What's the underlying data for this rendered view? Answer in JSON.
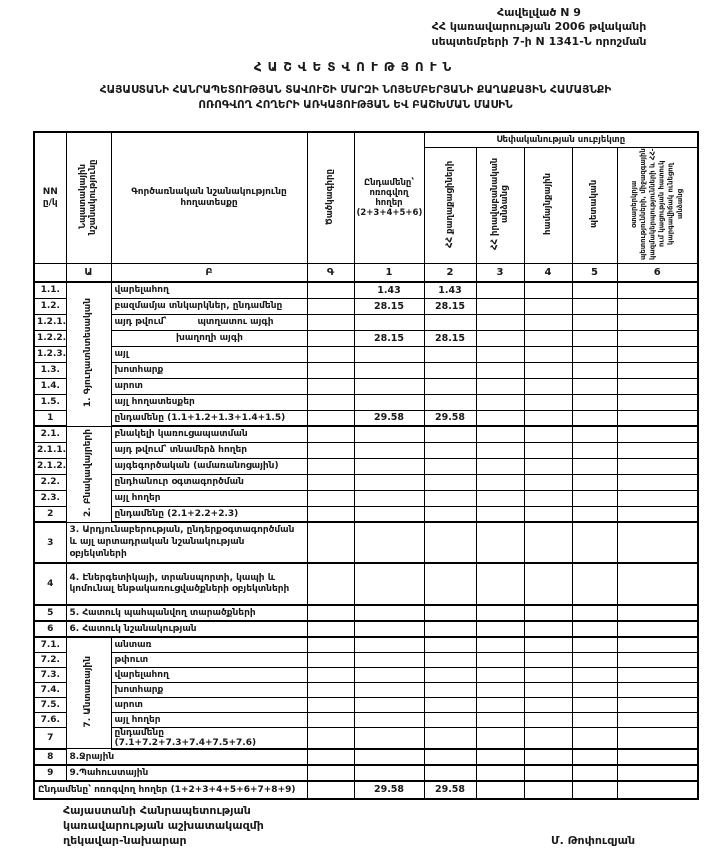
{
  "annex": {
    "line1": "Հավելված N 9",
    "line2": "ՀՀ կառավարության 2006 թվականի",
    "line3": "սեպտեմբերի 7-ի  N 1341-Ն որոշման"
  },
  "title": {
    "line1": "ՀԱՇՎԵՏՎՈՒԹՅՈՒՆ",
    "line2": "ՀԱՅԱՍՏԱՆԻ ՀԱՆՐԱՊԵՏՈՒԹՅԱՆ ՏԱՎՈՒՇԻ ՄԱՐԶԻ ՆՈՅԵՄԲԵՐՅԱՆԻ ՔԱՂԱՔԱՅԻՆ ՀԱՄԱՅՆՔԻ",
    "line3": "ՈՌՈԳՎՈՂ ՀՈՂԵՐԻ ԱՌԿԱՅՈՒԹՅԱՆ ԵՎ ԲԱՇԽՄԱՆ ՄԱՍԻՆ"
  },
  "table": {
    "ownership_header": "Սեփականության սուբյեկտը",
    "col_headers": {
      "nn": "NN ը/կ",
      "purpose": "Նպատակային նշանակությունը",
      "functional": "Գործառնական նշանակությունը հողատեսքը",
      "code": "Ծածկագիրը",
      "total": "Ընդամենը՝ ոռոգվող հողեր (2+3+4+5+6)",
      "citizens": "ՀՀ քաղաքացիների",
      "legal": "ՀՀ իրավաբանական անձանց",
      "community": "համայնքային",
      "state": "պետական",
      "foreign": "օտարերկրյա պետությունների, միջազգային կազմակերպությունների և ՀՀ-ում կացության հատուկ կարգավիճակ ունեցող անձանց"
    },
    "letter_row": [
      "",
      "Ա",
      "Բ",
      "Գ",
      "1",
      "2",
      "3",
      "4",
      "5",
      "6"
    ],
    "rows": [
      {
        "c": [
          {
            "t": "1.1."
          },
          {
            "t": "1. Գյուղատնտեսական",
            "rs": 9,
            "cls": "vgroup"
          },
          {
            "t": "վարելահող",
            "cls": "desc"
          },
          {},
          {
            "t": "1.43",
            "cls": "num"
          },
          {
            "t": "1.43",
            "cls": "num"
          },
          {},
          {},
          {},
          {}
        ]
      },
      {
        "c": [
          {
            "t": "1.2."
          },
          {
            "t": "բազմամյա տնկարկներ, ընդամենը",
            "cls": "desc"
          },
          {},
          {
            "t": "28.15",
            "cls": "num"
          },
          {
            "t": "28.15",
            "cls": "num"
          },
          {},
          {},
          {},
          {}
        ]
      },
      {
        "c": [
          {
            "t": "1.2.1."
          },
          {
            "t": "այդ թվում՝",
            "t2": "պտղատու այգի",
            "cls": "desc"
          },
          {},
          {},
          {},
          {},
          {},
          {},
          {}
        ]
      },
      {
        "c": [
          {
            "t": "1.2.2."
          },
          {
            "t": "խաղողի այգի",
            "cls": "desc desc-c"
          },
          {},
          {
            "t": "28.15",
            "cls": "num"
          },
          {
            "t": "28.15",
            "cls": "num"
          },
          {},
          {},
          {},
          {}
        ]
      },
      {
        "c": [
          {
            "t": "1.2.3."
          },
          {
            "t": "այլ",
            "cls": "desc"
          },
          {},
          {},
          {},
          {},
          {},
          {},
          {}
        ]
      },
      {
        "c": [
          {
            "t": "1.3."
          },
          {
            "t": "խոտհարք",
            "cls": "desc"
          },
          {},
          {},
          {},
          {},
          {},
          {},
          {}
        ]
      },
      {
        "c": [
          {
            "t": "1.4."
          },
          {
            "t": "արոտ",
            "cls": "desc"
          },
          {},
          {},
          {},
          {},
          {},
          {},
          {}
        ]
      },
      {
        "c": [
          {
            "t": "1.5."
          },
          {
            "t": "այլ հողատեսքեր",
            "cls": "desc"
          },
          {},
          {},
          {},
          {},
          {},
          {},
          {}
        ]
      },
      {
        "hb": true,
        "c": [
          {
            "t": "1"
          },
          {
            "t": "ընդամենը (1.1+1.2+1.3+1.4+1.5)",
            "cls": "desc"
          },
          {},
          {
            "t": "29.58",
            "cls": "num"
          },
          {
            "t": "29.58",
            "cls": "num"
          },
          {},
          {},
          {},
          {}
        ]
      },
      {
        "c": [
          {
            "t": "2.1."
          },
          {
            "t": "2. Բնակավայրերի",
            "rs": 6,
            "cls": "vgroup"
          },
          {
            "t": "բնակելի կառուցապատման",
            "cls": "desc"
          },
          {},
          {},
          {},
          {},
          {},
          {},
          {}
        ]
      },
      {
        "c": [
          {
            "t": "2.1.1."
          },
          {
            "t": "այդ թվում՝ տնամերձ հողեր",
            "cls": "desc"
          },
          {},
          {},
          {},
          {},
          {},
          {},
          {}
        ]
      },
      {
        "c": [
          {
            "t": "2.1.2."
          },
          {
            "t": "այգեգործական (ամառանոցային)",
            "cls": "desc"
          },
          {},
          {},
          {},
          {},
          {},
          {},
          {}
        ]
      },
      {
        "c": [
          {
            "t": "2.2."
          },
          {
            "t": "ընդհանուր օգտագործման",
            "cls": "desc"
          },
          {},
          {},
          {},
          {},
          {},
          {},
          {}
        ]
      },
      {
        "c": [
          {
            "t": "2.3."
          },
          {
            "t": "այլ հողեր",
            "cls": "desc"
          },
          {},
          {},
          {},
          {},
          {},
          {},
          {}
        ]
      },
      {
        "hb": true,
        "c": [
          {
            "t": "2"
          },
          {
            "t": "ընդամենը (2.1+2.2+2.3)",
            "cls": "desc"
          },
          {},
          {},
          {},
          {},
          {},
          {},
          {}
        ]
      },
      {
        "h": 36,
        "hb": true,
        "c": [
          {
            "t": "3"
          },
          {
            "t": "3. Արդյունաբերության, ընդերքօգտագործման և այլ արտադրական նշանակության օբյեկտների",
            "cs": 2,
            "cls": "desc wrap"
          },
          {},
          {},
          {},
          {},
          {},
          {},
          {}
        ]
      },
      {
        "h": 42,
        "hb": true,
        "c": [
          {
            "t": "4"
          },
          {
            "t": "4. Էներգետիկայի, տրանսպորտի, կապի և կոմունալ ենթակառուցվածքների օբյեկտների",
            "cs": 2,
            "cls": "desc wrap"
          },
          {},
          {},
          {},
          {},
          {},
          {},
          {}
        ]
      },
      {
        "hb": true,
        "c": [
          {
            "t": "5"
          },
          {
            "t": "5. Հատուկ պահպանվող տարածքների",
            "cs": 2,
            "cls": "desc"
          },
          {},
          {},
          {},
          {},
          {},
          {},
          {}
        ]
      },
      {
        "hb": true,
        "c": [
          {
            "t": "6"
          },
          {
            "t": "6. Հատուկ նշանակության",
            "cs": 2,
            "cls": "desc"
          },
          {},
          {},
          {},
          {},
          {},
          {},
          {}
        ]
      },
      {
        "h": 15,
        "c": [
          {
            "t": "7.1."
          },
          {
            "t": "7. Անտառային",
            "rs": 7,
            "cls": "vgroup"
          },
          {
            "t": "անտառ",
            "cls": "desc"
          },
          {},
          {},
          {},
          {},
          {},
          {},
          {}
        ]
      },
      {
        "h": 15,
        "c": [
          {
            "t": "7.2."
          },
          {
            "t": "թփուտ",
            "cls": "desc"
          },
          {},
          {},
          {},
          {},
          {},
          {},
          {}
        ]
      },
      {
        "h": 15,
        "c": [
          {
            "t": "7.3."
          },
          {
            "t": "վարելահող",
            "cls": "desc"
          },
          {},
          {},
          {},
          {},
          {},
          {},
          {}
        ]
      },
      {
        "h": 15,
        "c": [
          {
            "t": "7.4."
          },
          {
            "t": "խոտհարք",
            "cls": "desc"
          },
          {},
          {},
          {},
          {},
          {},
          {},
          {}
        ]
      },
      {
        "h": 15,
        "c": [
          {
            "t": "7.5."
          },
          {
            "t": "արոտ",
            "cls": "desc"
          },
          {},
          {},
          {},
          {},
          {},
          {},
          {}
        ]
      },
      {
        "h": 15,
        "c": [
          {
            "t": "7.6."
          },
          {
            "t": "այլ հողեր",
            "cls": "desc"
          },
          {},
          {},
          {},
          {},
          {},
          {},
          {}
        ]
      },
      {
        "h": 15,
        "hb": true,
        "c": [
          {
            "t": "7"
          },
          {
            "t": "ընդամենը (7.1+7.2+7.3+7.4+7.5+7.6)",
            "cls": "desc"
          },
          {},
          {},
          {},
          {},
          {},
          {},
          {}
        ]
      },
      {
        "hb": true,
        "c": [
          {
            "t": "8"
          },
          {
            "t": "8.Ջրային",
            "cs": 2,
            "cls": "desc"
          },
          {},
          {},
          {},
          {},
          {},
          {},
          {}
        ]
      },
      {
        "hb": true,
        "c": [
          {
            "t": "9"
          },
          {
            "t": "9.Պահուստային",
            "cs": 2,
            "cls": "desc"
          },
          {},
          {},
          {},
          {},
          {},
          {},
          {}
        ]
      },
      {
        "h": 18,
        "c": [
          {
            "t": "Ընդամենը՝ ոռոգվող հողեր (1+2+3+4+5+6+7+8+9)",
            "cs": 3,
            "cls": "desc"
          },
          {},
          {
            "t": "29.58",
            "cls": "num"
          },
          {
            "t": "29.58",
            "cls": "num"
          },
          {},
          {},
          {},
          {}
        ]
      }
    ]
  },
  "footer": {
    "office_line1": "Հայաստանի Հանրապետության",
    "office_line2": "կառավարության աշխատակազմի",
    "office_line3": "ղեկավար-նախարար",
    "signature": "Մ. Թոփուզյան"
  }
}
